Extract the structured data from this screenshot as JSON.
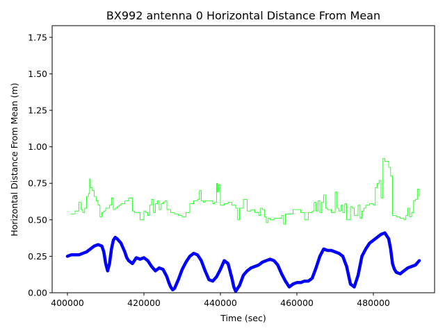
{
  "chart_data": {
    "type": "line",
    "title": "BX992 antenna 0 Horizontal Distance From Mean",
    "xlabel": "Time (sec)",
    "ylabel": "Horizontal Distance From Mean (m)",
    "xlim": [
      396000,
      496000
    ],
    "ylim": [
      0,
      1.83
    ],
    "xticks": [
      400000,
      420000,
      440000,
      460000,
      480000
    ],
    "xtick_labels": [
      "400000",
      "420000",
      "440000",
      "460000",
      "480000"
    ],
    "yticks": [
      0.0,
      0.25,
      0.5,
      0.75,
      1.0,
      1.25,
      1.5,
      1.75
    ],
    "ytick_labels": [
      "0.00",
      "0.25",
      "0.50",
      "0.75",
      "1.00",
      "1.25",
      "1.50",
      "1.75"
    ],
    "grid": false,
    "series": [
      {
        "name": "green",
        "color": "#00ff00",
        "style": "thin-step",
        "x": [
          401000,
          402000,
          403000,
          403500,
          404000,
          404500,
          405000,
          405500,
          405800,
          406000,
          406500,
          407000,
          407500,
          408000,
          408500,
          409000,
          409500,
          410000,
          411000,
          411500,
          412000,
          412500,
          413000,
          413500,
          414000,
          415000,
          416000,
          417000,
          417500,
          418000,
          419000,
          420000,
          420500,
          421000,
          421500,
          422000,
          422500,
          423000,
          423500,
          424000,
          424500,
          425000,
          425500,
          426000,
          427000,
          428000,
          429000,
          430000,
          431000,
          432000,
          433000,
          434000,
          434500,
          435000,
          435500,
          436000,
          437000,
          438000,
          438500,
          439000,
          439200,
          439500,
          440000,
          441000,
          442000,
          443000,
          444000,
          444500,
          445000,
          446000,
          447000,
          448000,
          449000,
          450000,
          450500,
          451000,
          451500,
          452000,
          452500,
          453000,
          454000,
          455000,
          456000,
          456500,
          457000,
          458000,
          459000,
          460000,
          461000,
          462000,
          463000,
          464000,
          464500,
          465000,
          465500,
          466000,
          466500,
          467000,
          467500,
          468000,
          469000,
          470000,
          470500,
          471000,
          471500,
          472000,
          472500,
          473000,
          474000,
          474500,
          475000,
          476000,
          476500,
          477000,
          477500,
          478000,
          479000,
          480000,
          480500,
          481000,
          481500,
          482000,
          482500,
          483000,
          484000,
          484500,
          485000,
          486000,
          487000,
          488000,
          488500,
          489000,
          489500,
          490000,
          490500,
          491000,
          491500,
          492000
        ],
        "y": [
          0.54,
          0.56,
          0.62,
          0.57,
          0.55,
          0.58,
          0.66,
          0.68,
          0.78,
          0.72,
          0.7,
          0.66,
          0.63,
          0.6,
          0.52,
          0.55,
          0.56,
          0.58,
          0.6,
          0.65,
          0.57,
          0.58,
          0.59,
          0.6,
          0.61,
          0.63,
          0.65,
          0.56,
          0.55,
          0.55,
          0.5,
          0.56,
          0.55,
          0.53,
          0.6,
          0.64,
          0.55,
          0.61,
          0.63,
          0.57,
          0.61,
          0.62,
          0.63,
          0.57,
          0.55,
          0.54,
          0.53,
          0.52,
          0.55,
          0.61,
          0.63,
          0.64,
          0.7,
          0.63,
          0.62,
          0.63,
          0.63,
          0.61,
          0.62,
          0.75,
          0.69,
          0.74,
          0.6,
          0.61,
          0.62,
          0.6,
          0.58,
          0.5,
          0.58,
          0.64,
          0.56,
          0.57,
          0.55,
          0.53,
          0.58,
          0.57,
          0.52,
          0.48,
          0.51,
          0.5,
          0.51,
          0.51,
          0.53,
          0.47,
          0.54,
          0.54,
          0.57,
          0.57,
          0.55,
          0.5,
          0.55,
          0.56,
          0.62,
          0.56,
          0.63,
          0.55,
          0.62,
          0.67,
          0.58,
          0.57,
          0.55,
          0.69,
          0.58,
          0.56,
          0.6,
          0.55,
          0.61,
          0.5,
          0.59,
          0.58,
          0.53,
          0.6,
          0.51,
          0.56,
          0.58,
          0.6,
          0.61,
          0.6,
          0.72,
          0.75,
          0.77,
          0.65,
          0.92,
          0.9,
          0.86,
          0.8,
          0.53,
          0.52,
          0.51,
          0.5,
          0.53,
          0.58,
          0.52,
          0.55,
          0.63,
          0.64,
          0.71,
          0.66
        ],
        "linewidth": 0.8
      },
      {
        "name": "blue",
        "color": "#0000ff",
        "style": "thick-noisy",
        "x": [
          400000,
          401000,
          402000,
          403000,
          404000,
          405000,
          406000,
          407000,
          408000,
          409000,
          409500,
          410000,
          410500,
          411000,
          411500,
          412000,
          412500,
          413000,
          414000,
          415000,
          415500,
          416000,
          417000,
          418000,
          419000,
          420000,
          421000,
          422000,
          423000,
          424000,
          425000,
          426000,
          426500,
          427000,
          427500,
          428000,
          429000,
          430000,
          431000,
          432000,
          433000,
          434000,
          435000,
          436000,
          437000,
          438000,
          439000,
          440000,
          441000,
          442000,
          443000,
          443500,
          444000,
          445000,
          446000,
          447000,
          448000,
          449000,
          450000,
          451000,
          452000,
          453000,
          454000,
          455000,
          456000,
          457000,
          458000,
          459000,
          460000,
          461000,
          462000,
          463000,
          464000,
          465000,
          466000,
          467000,
          468000,
          469000,
          470000,
          471000,
          472000,
          473000,
          473500,
          474000,
          475000,
          476000,
          477000,
          478000,
          479000,
          480000,
          481000,
          482000,
          483000,
          484000,
          484500,
          485000,
          485500,
          486000,
          487000,
          488000,
          489000,
          490000,
          491000,
          492000
        ],
        "y": [
          0.25,
          0.26,
          0.26,
          0.26,
          0.27,
          0.28,
          0.3,
          0.32,
          0.33,
          0.32,
          0.28,
          0.2,
          0.15,
          0.2,
          0.3,
          0.36,
          0.38,
          0.37,
          0.34,
          0.28,
          0.24,
          0.22,
          0.2,
          0.24,
          0.23,
          0.24,
          0.22,
          0.18,
          0.15,
          0.17,
          0.16,
          0.11,
          0.07,
          0.04,
          0.02,
          0.03,
          0.09,
          0.16,
          0.21,
          0.25,
          0.27,
          0.26,
          0.22,
          0.15,
          0.09,
          0.08,
          0.11,
          0.16,
          0.22,
          0.2,
          0.1,
          0.04,
          0.01,
          0.05,
          0.12,
          0.15,
          0.17,
          0.18,
          0.19,
          0.21,
          0.22,
          0.23,
          0.22,
          0.19,
          0.13,
          0.08,
          0.04,
          0.06,
          0.07,
          0.07,
          0.08,
          0.08,
          0.1,
          0.17,
          0.25,
          0.3,
          0.29,
          0.29,
          0.28,
          0.27,
          0.25,
          0.18,
          0.12,
          0.06,
          0.04,
          0.12,
          0.25,
          0.3,
          0.34,
          0.36,
          0.38,
          0.4,
          0.41,
          0.37,
          0.3,
          0.2,
          0.16,
          0.14,
          0.13,
          0.15,
          0.17,
          0.18,
          0.19,
          0.22
        ],
        "linewidth": 4.5
      }
    ]
  }
}
